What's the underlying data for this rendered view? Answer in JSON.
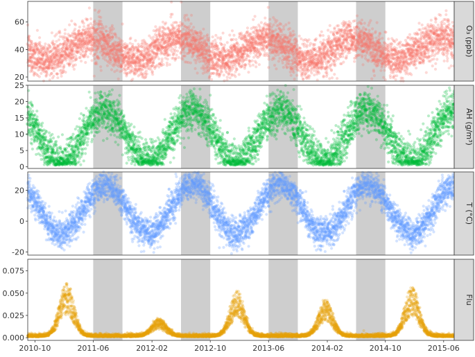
{
  "chart_data": {
    "type": "scatter",
    "x_axis": {
      "type": "date",
      "range": [
        "2010-09-01",
        "2015-07-15"
      ],
      "tick_labels": [
        "2010-10",
        "2011-06",
        "2012-02",
        "2012-10",
        "2013-06",
        "2014-02",
        "2014-10",
        "2015-06"
      ],
      "tick_dates": [
        "2010-10-01",
        "2011-06-01",
        "2012-02-01",
        "2012-10-01",
        "2013-06-01",
        "2014-02-01",
        "2014-10-01",
        "2015-06-01"
      ]
    },
    "shaded_periods": [
      [
        "2011-06-01",
        "2011-10-01"
      ],
      [
        "2012-06-01",
        "2012-10-01"
      ],
      [
        "2013-06-01",
        "2013-10-01"
      ],
      [
        "2014-06-01",
        "2014-10-01"
      ]
    ],
    "panels": [
      {
        "strip_label": "O₃ (ppb)",
        "color": "#F8766D",
        "ylim": [
          17,
          75
        ],
        "y_ticks": [
          20,
          40,
          60
        ],
        "seasonal_model": {
          "mean": 40,
          "amplitude": 8,
          "peak_day_of_year": 140,
          "noise_sd": 7
        }
      },
      {
        "strip_label": "AH (g/m³)",
        "color": "#00BA38",
        "ylim": [
          -0.5,
          25
        ],
        "y_ticks": [
          0,
          5,
          10,
          15,
          20,
          25
        ],
        "seasonal_model": {
          "mean": 9.5,
          "amplitude": 8,
          "peak_day_of_year": 200,
          "noise_sd": 3
        }
      },
      {
        "strip_label": "T (°C)",
        "color": "#619CFF",
        "ylim": [
          -22,
          32
        ],
        "y_ticks": [
          -20,
          0,
          20
        ],
        "seasonal_model": {
          "mean": 8,
          "amplitude": 16,
          "peak_day_of_year": 200,
          "noise_sd": 5
        }
      },
      {
        "strip_label": "Flu",
        "color": "#E7A10A",
        "ylim": [
          -0.003,
          0.088
        ],
        "y_ticks": [
          0.0,
          0.025,
          0.05,
          0.075
        ],
        "y_tick_labels": [
          "0.000",
          "0.025",
          "0.050",
          "0.075"
        ],
        "seasonal_model": {
          "baseline": 0.001,
          "epidemic_peak_dates": [
            "2011-02-10",
            "2012-03-01",
            "2013-01-20",
            "2014-01-25",
            "2015-01-20"
          ],
          "epidemic_peak_values": [
            0.06,
            0.02,
            0.05,
            0.04,
            0.055
          ]
        }
      }
    ],
    "grid": false,
    "legend": "none"
  }
}
